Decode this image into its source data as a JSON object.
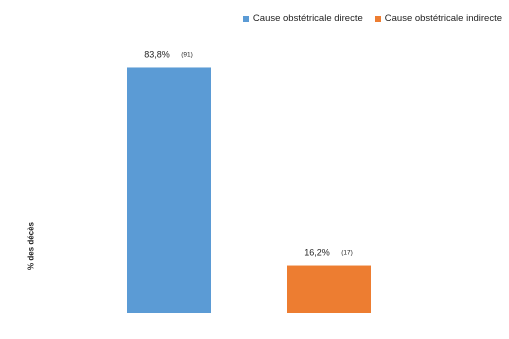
{
  "chart_data": {
    "type": "bar",
    "title": "",
    "xlabel": "",
    "ylabel": "% des décès",
    "ylim": [
      0,
      100
    ],
    "grid": false,
    "legend_position": "top-right",
    "categories": [
      "Cause obstétricale directe",
      "Cause obstétricale indirecte"
    ],
    "series": [
      {
        "name": "Cause obstétricale directe",
        "color": "#5b9bd5",
        "values": [
          83.8,
          null
        ],
        "labels": [
          "83,8%",
          ""
        ],
        "counts": [
          "(91)",
          ""
        ]
      },
      {
        "name": "Cause obstétricale indirecte",
        "color": "#ed7d31",
        "values": [
          null,
          16.2
        ],
        "labels": [
          "",
          "16,2%"
        ],
        "counts": [
          "",
          "(17)"
        ]
      }
    ]
  }
}
